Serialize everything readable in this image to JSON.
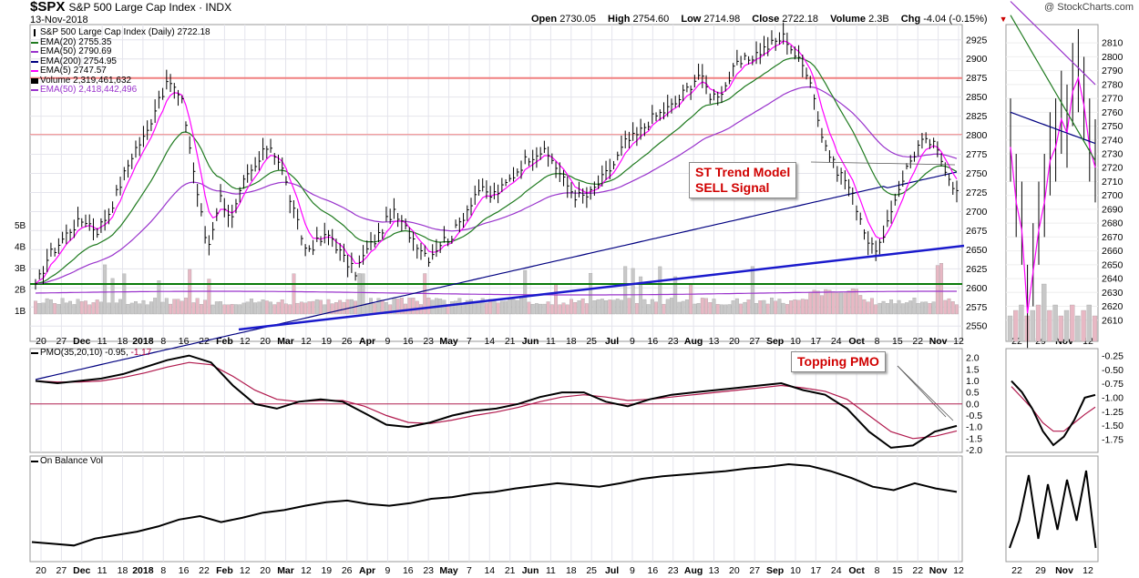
{
  "header": {
    "symbol": "$SPX",
    "description": "S&P 500 Large Cap Index · INDX",
    "date": "13-Nov-2018",
    "copyright": "@ StockCharts.com",
    "open_label": "Open",
    "open": "2730.05",
    "high_label": "High",
    "high": "2754.60",
    "low_label": "Low",
    "low": "2714.98",
    "close_label": "Close",
    "close": "2722.18",
    "volume_label": "Volume",
    "volume": "2.3B",
    "chg_label": "Chg",
    "chg": "-4.04 (-0.15%)"
  },
  "legend": {
    "price": "S&P 500 Large Cap Index (Daily) 2722.18",
    "ema20": "EMA(20) 2755.35",
    "ema50": "EMA(50) 2790.69",
    "ema200": "EMA(200) 2754.95",
    "ema5": "EMA(5) 2747.57",
    "volume": "Volume 2,319,461,632",
    "vol_ema": "EMA(50) 2,418,442,496",
    "pmo_title": "PMO(35,20,10)",
    "pmo_value": "-0.95,",
    "pmo_signal": "-1.17",
    "obv_title": "On Balance Vol"
  },
  "annotations": {
    "trend_line1": "ST Trend Model",
    "trend_line2": "SELL Signal",
    "pmo_note": "Topping PMO"
  },
  "colors": {
    "ema20": "#1f7a1f",
    "ema50": "#9933cc",
    "ema200": "#000080",
    "ema5": "#ff00ff",
    "trendline": "#1a1acc",
    "support": "#0a7a0a",
    "resistance": "#f08080",
    "annotation": "#d00000"
  },
  "chart_data": [
    {
      "type": "line",
      "title": "S&P 500 Large Cap Index (Daily)",
      "ylim": [
        2530,
        2945
      ],
      "y_ticks": [
        "2550",
        "2575",
        "2600",
        "2625",
        "2650",
        "2675",
        "2700",
        "2725",
        "2750",
        "2775",
        "2800",
        "2825",
        "2850",
        "2875",
        "2900",
        "2925"
      ],
      "volume_ticks": [
        "1B",
        "2B",
        "3B",
        "4B",
        "5B"
      ],
      "x_tick_labels": [
        "20",
        "27",
        "Dec",
        "11",
        "18",
        "2018",
        "8",
        "16",
        "22",
        "Feb",
        "12",
        "20",
        "Mar",
        "12",
        "19",
        "26",
        "Apr",
        "9",
        "16",
        "23",
        "May",
        "7",
        "14",
        "21",
        "Jun",
        "11",
        "18",
        "25",
        "Jul",
        "9",
        "16",
        "23",
        "Aug",
        "13",
        "20",
        "27",
        "Sep",
        "10",
        "17",
        "24",
        "Oct",
        "8",
        "15",
        "22",
        "Nov",
        "12"
      ],
      "series": [
        {
          "name": "S&P 500 Large Cap Index (Daily)",
          "values": [
            2600,
            2640,
            2660,
            2680,
            2690,
            2675,
            2700,
            2740,
            2780,
            2800,
            2850,
            2870,
            2840,
            2740,
            2650,
            2720,
            2690,
            2740,
            2760,
            2790,
            2760,
            2700,
            2650,
            2660,
            2670,
            2640,
            2620,
            2650,
            2670,
            2700,
            2680,
            2660,
            2640,
            2660,
            2670,
            2700,
            2730,
            2720,
            2730,
            2750,
            2770,
            2780,
            2770,
            2740,
            2720,
            2720,
            2740,
            2760,
            2790,
            2800,
            2820,
            2830,
            2840,
            2860,
            2880,
            2850,
            2860,
            2890,
            2900,
            2910,
            2920,
            2930,
            2900,
            2880,
            2800,
            2760,
            2740,
            2700,
            2650,
            2660,
            2720,
            2760,
            2790,
            2790,
            2760,
            2725
          ]
        },
        {
          "name": "EMA(20) 2755.35"
        },
        {
          "name": "EMA(50) 2790.69"
        },
        {
          "name": "EMA(200) 2754.95"
        },
        {
          "name": "EMA(5) 2747.57"
        }
      ],
      "horizontal_lines": [
        2875,
        2801,
        2597
      ]
    },
    {
      "type": "line",
      "title": "PMO(35,20,10)",
      "ylim": [
        -2.1,
        2.4
      ],
      "y_ticks": [
        "2.0",
        "1.5",
        "1.0",
        "0.5",
        "0.0",
        "-0.5",
        "-1.0",
        "-1.5",
        "-2.0"
      ],
      "series": [
        {
          "name": "PMO",
          "values": [
            1.0,
            0.9,
            1.0,
            1.1,
            1.3,
            1.6,
            1.9,
            2.1,
            1.8,
            0.8,
            0.0,
            -0.2,
            0.1,
            0.2,
            0.1,
            -0.4,
            -0.9,
            -1.0,
            -0.8,
            -0.5,
            -0.3,
            -0.2,
            0.0,
            0.3,
            0.5,
            0.5,
            0.1,
            -0.1,
            0.2,
            0.4,
            0.5,
            0.6,
            0.7,
            0.8,
            0.9,
            0.6,
            0.4,
            -0.2,
            -1.2,
            -1.9,
            -1.8,
            -1.2,
            -0.95
          ]
        },
        {
          "name": "Signal",
          "values": [
            1.0,
            0.95,
            0.95,
            1.0,
            1.15,
            1.35,
            1.6,
            1.8,
            1.7,
            1.2,
            0.6,
            0.2,
            0.1,
            0.15,
            0.15,
            -0.1,
            -0.5,
            -0.8,
            -0.85,
            -0.7,
            -0.5,
            -0.35,
            -0.15,
            0.1,
            0.3,
            0.4,
            0.3,
            0.15,
            0.2,
            0.3,
            0.4,
            0.5,
            0.6,
            0.7,
            0.8,
            0.7,
            0.55,
            0.2,
            -0.5,
            -1.2,
            -1.5,
            -1.4,
            -1.17
          ]
        }
      ]
    },
    {
      "type": "line",
      "title": "On Balance Vol",
      "series": [
        {
          "name": "On Balance Vol",
          "values": [
            10,
            8,
            6,
            14,
            18,
            22,
            28,
            36,
            40,
            33,
            38,
            44,
            47,
            52,
            56,
            58,
            54,
            52,
            55,
            60,
            62,
            66,
            68,
            72,
            75,
            78,
            76,
            74,
            78,
            83,
            86,
            88,
            90,
            92,
            95,
            97,
            100,
            98,
            92,
            84,
            74,
            70,
            78,
            72,
            68
          ]
        }
      ]
    }
  ],
  "zoom_panel": {
    "price_ticks": [
      "2810",
      "2800",
      "2790",
      "2780",
      "2770",
      "2760",
      "2750",
      "2740",
      "2730",
      "2720",
      "2710",
      "2700",
      "2690",
      "2680",
      "2670",
      "2660",
      "2650",
      "2640",
      "2630",
      "2620",
      "2610"
    ],
    "pmo_ticks": [
      "-0.25",
      "-0.50",
      "-0.75",
      "-1.00",
      "-1.25",
      "-1.50",
      "-1.75"
    ],
    "x_tick_labels": [
      "22",
      "29",
      "Nov",
      "12"
    ]
  }
}
